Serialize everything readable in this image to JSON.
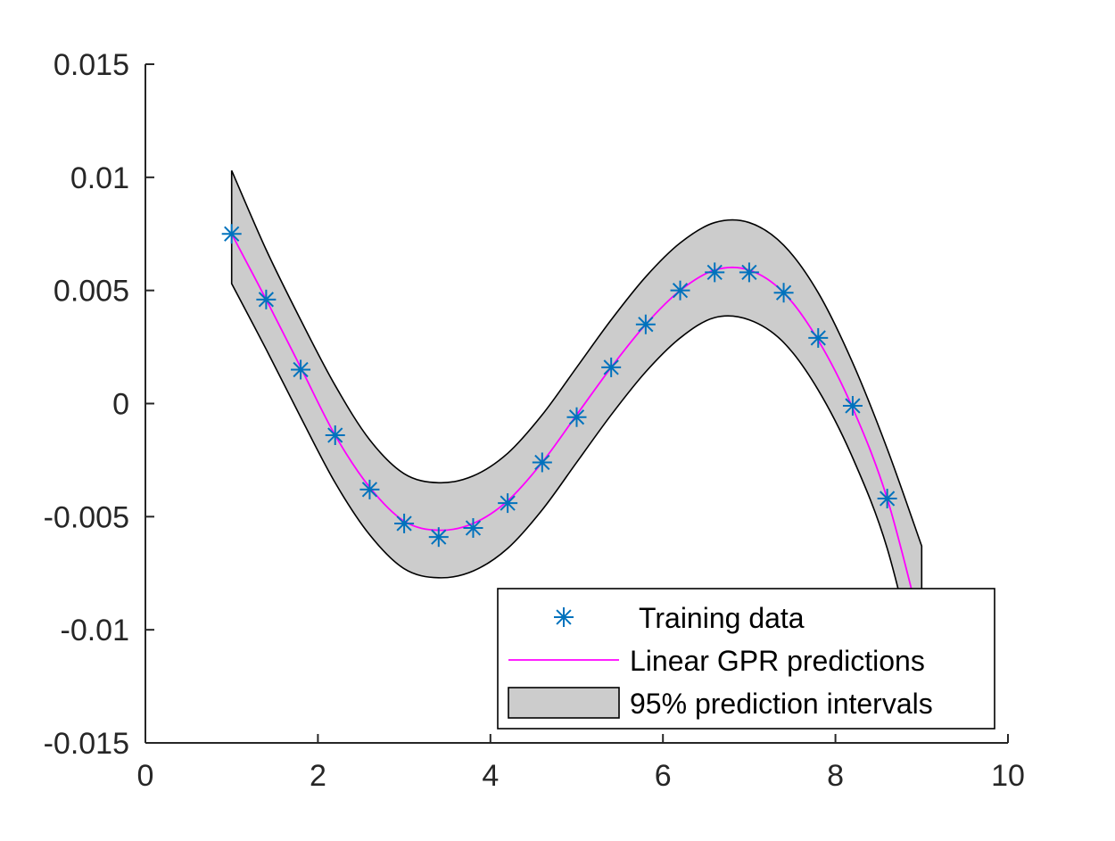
{
  "colors": {
    "background": "#ffffff",
    "axis": "#262626",
    "band_fill": "#cccccc",
    "band_edge": "#000000",
    "prediction_line": "#ff00ff",
    "training_marker": "#0072bd"
  },
  "chart_data": {
    "type": "line",
    "title": "",
    "xlabel": "",
    "ylabel": "",
    "xlim": [
      0,
      10
    ],
    "ylim": [
      -0.015,
      0.015
    ],
    "x_ticks": [
      {
        "value": 0,
        "label": "0"
      },
      {
        "value": 2,
        "label": "2"
      },
      {
        "value": 4,
        "label": "4"
      },
      {
        "value": 6,
        "label": "6"
      },
      {
        "value": 8,
        "label": "8"
      },
      {
        "value": 10,
        "label": "10"
      }
    ],
    "y_ticks": [
      {
        "value": 0.015,
        "label": "0.015"
      },
      {
        "value": 0.01,
        "label": "0.01"
      },
      {
        "value": 0.005,
        "label": "0.005"
      },
      {
        "value": 0,
        "label": "0"
      },
      {
        "value": -0.005,
        "label": "-0.005"
      },
      {
        "value": -0.01,
        "label": "-0.01"
      },
      {
        "value": -0.015,
        "label": "-0.015"
      }
    ],
    "grid": false,
    "legend_position": "bottom-right",
    "series": [
      {
        "name": "Training data",
        "kind": "scatter",
        "marker": "asterisk",
        "x": [
          1.0,
          1.4,
          1.8,
          2.2,
          2.6,
          3.0,
          3.4,
          3.8,
          4.2,
          4.6,
          5.0,
          5.4,
          5.8,
          6.2,
          6.6,
          7.0,
          7.4,
          7.8,
          8.2,
          8.6,
          9.0
        ],
        "y": [
          0.0075,
          0.0046,
          0.0015,
          -0.0014,
          -0.0038,
          -0.0053,
          -0.0059,
          -0.0055,
          -0.0044,
          -0.0026,
          -0.0006,
          0.0016,
          0.0035,
          0.005,
          0.0058,
          0.0058,
          0.0049,
          0.0029,
          -0.0001,
          -0.0042,
          -0.01
        ]
      },
      {
        "name": "Linear GPR predictions",
        "kind": "line",
        "x": [
          1.0,
          1.4,
          1.8,
          2.2,
          2.6,
          3.0,
          3.4,
          3.8,
          4.2,
          4.6,
          5.0,
          5.4,
          5.8,
          6.2,
          6.6,
          7.0,
          7.4,
          7.8,
          8.2,
          8.6,
          9.0
        ],
        "y": [
          0.0075,
          0.0046,
          0.0016,
          -0.0014,
          -0.0037,
          -0.0052,
          -0.0056,
          -0.0053,
          -0.0043,
          -0.0026,
          -0.0005,
          0.0016,
          0.0035,
          0.005,
          0.0059,
          0.0059,
          0.0049,
          0.0028,
          -0.0002,
          -0.0042,
          -0.01
        ]
      },
      {
        "name": "95% prediction intervals",
        "kind": "band",
        "x": [
          1.0,
          1.4,
          1.8,
          2.2,
          2.6,
          3.0,
          3.4,
          3.8,
          4.2,
          4.6,
          5.0,
          5.4,
          5.8,
          6.2,
          6.6,
          7.0,
          7.4,
          7.8,
          8.2,
          8.6,
          9.0
        ],
        "lower": [
          0.0053,
          0.0024,
          -0.0006,
          -0.0035,
          -0.0058,
          -0.0073,
          -0.0077,
          -0.0074,
          -0.0064,
          -0.0047,
          -0.0026,
          -0.0005,
          0.0014,
          0.0029,
          0.0038,
          0.0037,
          0.0027,
          0.0006,
          -0.0024,
          -0.0064,
          -0.0125
        ],
        "upper": [
          0.0103,
          0.0068,
          0.0037,
          0.0008,
          -0.0016,
          -0.0031,
          -0.0035,
          -0.0032,
          -0.0022,
          -0.0005,
          0.0016,
          0.0037,
          0.0056,
          0.0071,
          0.008,
          0.008,
          0.007,
          0.0049,
          0.0018,
          -0.002,
          -0.0063
        ]
      }
    ],
    "legend": [
      "Training data",
      "Linear GPR predictions",
      "95% prediction intervals"
    ]
  }
}
